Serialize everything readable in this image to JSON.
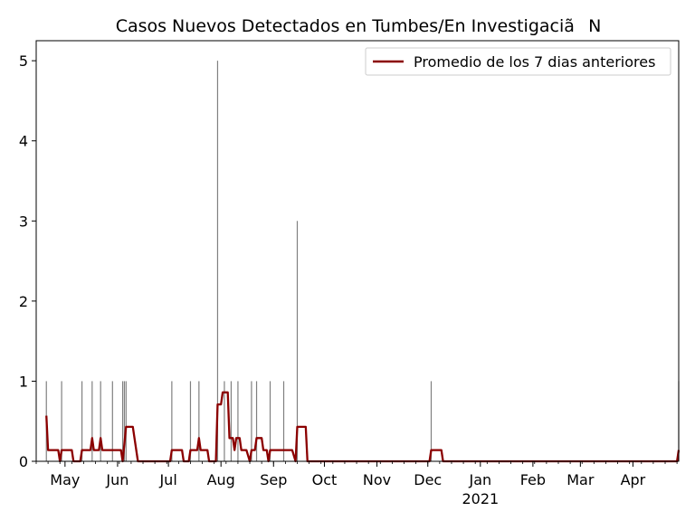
{
  "chart_data": {
    "type": "bar+line",
    "title": "Casos Nuevos Detectados en Tumbes/En InvestigaciãN",
    "xlabel": "",
    "ylabel": "",
    "x_range": [
      "2020-04-14",
      "2021-04-28"
    ],
    "ylim": [
      0,
      5.25
    ],
    "y_ticks": [
      0,
      1,
      2,
      3,
      4,
      5
    ],
    "x_ticks": [
      {
        "date": "2020-05-01",
        "label": "May"
      },
      {
        "date": "2020-06-01",
        "label": "Jun"
      },
      {
        "date": "2020-07-01",
        "label": "Jul"
      },
      {
        "date": "2020-08-01",
        "label": "Aug"
      },
      {
        "date": "2020-09-01",
        "label": "Sep"
      },
      {
        "date": "2020-10-01",
        "label": "Oct"
      },
      {
        "date": "2020-11-01",
        "label": "Nov"
      },
      {
        "date": "2020-12-01",
        "label": "Dec"
      },
      {
        "date": "2021-01-01",
        "label": "Jan",
        "sublabel": "2021"
      },
      {
        "date": "2021-02-01",
        "label": "Feb"
      },
      {
        "date": "2021-03-01",
        "label": "Mar"
      },
      {
        "date": "2021-04-01",
        "label": "Apr"
      }
    ],
    "grid": false,
    "legend_position": "top-right",
    "bars": {
      "color": "#808080",
      "points": [
        {
          "date": "2020-04-20",
          "value": 1
        },
        {
          "date": "2020-04-29",
          "value": 1
        },
        {
          "date": "2020-05-11",
          "value": 1
        },
        {
          "date": "2020-05-17",
          "value": 1
        },
        {
          "date": "2020-05-22",
          "value": 1
        },
        {
          "date": "2020-05-29",
          "value": 1
        },
        {
          "date": "2020-06-04",
          "value": 1
        },
        {
          "date": "2020-06-05",
          "value": 1
        },
        {
          "date": "2020-06-06",
          "value": 1
        },
        {
          "date": "2020-07-03",
          "value": 1
        },
        {
          "date": "2020-07-14",
          "value": 1
        },
        {
          "date": "2020-07-19",
          "value": 1
        },
        {
          "date": "2020-07-30",
          "value": 5
        },
        {
          "date": "2020-08-03",
          "value": 1
        },
        {
          "date": "2020-08-07",
          "value": 1
        },
        {
          "date": "2020-08-11",
          "value": 1
        },
        {
          "date": "2020-08-19",
          "value": 1
        },
        {
          "date": "2020-08-22",
          "value": 1
        },
        {
          "date": "2020-08-30",
          "value": 1
        },
        {
          "date": "2020-09-07",
          "value": 1
        },
        {
          "date": "2020-09-15",
          "value": 3
        },
        {
          "date": "2020-12-03",
          "value": 1
        },
        {
          "date": "2021-04-28",
          "value": 1
        }
      ]
    },
    "series": [
      {
        "name": "Promedio de los 7 dias anteriores",
        "color": "#8b0000",
        "points": [
          [
            "2020-04-20",
            0.57
          ],
          [
            "2020-04-21",
            0.14
          ],
          [
            "2020-04-27",
            0.14
          ],
          [
            "2020-04-28",
            0.0
          ],
          [
            "2020-04-29",
            0.14
          ],
          [
            "2020-05-05",
            0.14
          ],
          [
            "2020-05-06",
            0.0
          ],
          [
            "2020-05-10",
            0.0
          ],
          [
            "2020-05-11",
            0.14
          ],
          [
            "2020-05-16",
            0.14
          ],
          [
            "2020-05-17",
            0.29
          ],
          [
            "2020-05-18",
            0.14
          ],
          [
            "2020-05-21",
            0.14
          ],
          [
            "2020-05-22",
            0.29
          ],
          [
            "2020-05-23",
            0.14
          ],
          [
            "2020-06-03",
            0.14
          ],
          [
            "2020-06-04",
            0.0
          ],
          [
            "2020-06-06",
            0.43
          ],
          [
            "2020-06-10",
            0.43
          ],
          [
            "2020-06-13",
            0.0
          ],
          [
            "2020-07-02",
            0.0
          ],
          [
            "2020-07-03",
            0.14
          ],
          [
            "2020-07-09",
            0.14
          ],
          [
            "2020-07-10",
            0.0
          ],
          [
            "2020-07-13",
            0.0
          ],
          [
            "2020-07-14",
            0.14
          ],
          [
            "2020-07-18",
            0.14
          ],
          [
            "2020-07-19",
            0.29
          ],
          [
            "2020-07-20",
            0.14
          ],
          [
            "2020-07-24",
            0.14
          ],
          [
            "2020-07-25",
            0.0
          ],
          [
            "2020-07-29",
            0.0
          ],
          [
            "2020-07-30",
            0.71
          ],
          [
            "2020-08-01",
            0.71
          ],
          [
            "2020-08-02",
            0.86
          ],
          [
            "2020-08-05",
            0.86
          ],
          [
            "2020-08-06",
            0.29
          ],
          [
            "2020-08-08",
            0.29
          ],
          [
            "2020-08-09",
            0.14
          ],
          [
            "2020-08-10",
            0.29
          ],
          [
            "2020-08-12",
            0.29
          ],
          [
            "2020-08-13",
            0.14
          ],
          [
            "2020-08-16",
            0.14
          ],
          [
            "2020-08-18",
            0.0
          ],
          [
            "2020-08-19",
            0.14
          ],
          [
            "2020-08-21",
            0.14
          ],
          [
            "2020-08-22",
            0.29
          ],
          [
            "2020-08-25",
            0.29
          ],
          [
            "2020-08-26",
            0.14
          ],
          [
            "2020-08-28",
            0.14
          ],
          [
            "2020-08-29",
            0.0
          ],
          [
            "2020-08-30",
            0.14
          ],
          [
            "2020-09-12",
            0.14
          ],
          [
            "2020-09-14",
            0.0
          ],
          [
            "2020-09-15",
            0.43
          ],
          [
            "2020-09-20",
            0.43
          ],
          [
            "2020-09-21",
            0.0
          ],
          [
            "2020-12-02",
            0.0
          ],
          [
            "2020-12-03",
            0.14
          ],
          [
            "2020-12-09",
            0.14
          ],
          [
            "2020-12-10",
            0.0
          ],
          [
            "2021-04-27",
            0.0
          ],
          [
            "2021-04-28",
            0.14
          ]
        ]
      }
    ]
  }
}
